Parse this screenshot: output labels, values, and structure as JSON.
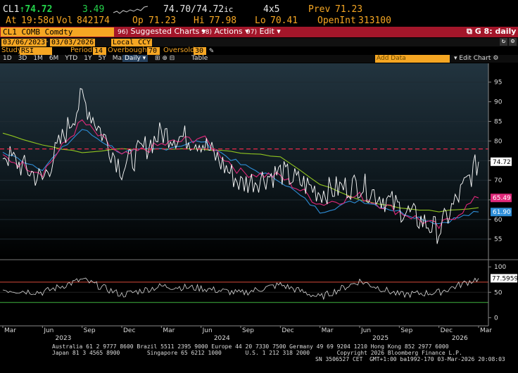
{
  "quote": {
    "ticker": "CL1",
    "arrow": "↑",
    "last": "74.72",
    "change": "3.49",
    "bid_ask": "74.70/74.72",
    "bid_ask_suffix": "ic",
    "size": "4x5",
    "prev_label": "Prev",
    "prev": "71.23",
    "at_label": "At",
    "time": "19:58d",
    "vol_label": "Vol",
    "vol": "842174",
    "op_label": "Op",
    "open": "71.23",
    "hi_label": "Hi",
    "high": "77.98",
    "lo_label": "Lo",
    "low": "70.41",
    "oi_label": "OpenInt",
    "open_interest": "313100"
  },
  "toolbar": {
    "security": "CL1 COMB Comdty",
    "suggested_charts": "Suggested Charts",
    "actions": "Actions",
    "edit": "Edit",
    "function": "G 8: daily"
  },
  "settings": {
    "start_date": "03/06/2023",
    "end_date": "03/03/2026",
    "currency": "Local CCY",
    "study_label": "Study",
    "study": "RSI",
    "period_label": "Period",
    "period": "14",
    "overbought_label": "Overbought",
    "overbought": "70",
    "oversold_label": "Oversold",
    "oversold": "30"
  },
  "tabs": [
    "1D",
    "3D",
    "1M",
    "6M",
    "YTD",
    "1Y",
    "5Y",
    "Max"
  ],
  "frequency": "Daily",
  "table_label": "Table",
  "add_data": "Add Data",
  "edit_chart": "Edit Chart",
  "colors": {
    "price": "#ffffff",
    "ma_short": "#e0287a",
    "ma_mid": "#2e8ed8",
    "ma_long": "#8fc31f",
    "resistance": "#e8284a",
    "rsi": "#d9d9d9"
  },
  "chart_data": [
    {
      "type": "line",
      "x": [
        "Mar 2023",
        "Jun 2023",
        "Sep 2023",
        "Dec 2023",
        "Mar 2024",
        "Jun 2024",
        "Sep 2024",
        "Dec 2024",
        "Mar 2025",
        "Jun 2025",
        "Sep 2025",
        "Dec 2025",
        "Mar 2026"
      ],
      "series": [
        {
          "values": [
            77,
            70,
            91,
            73,
            82,
            80,
            69,
            72,
            67,
            69,
            63,
            57,
            74.72
          ]
        },
        {
          "values": [
            76,
            72,
            85,
            76,
            79,
            81,
            72,
            71,
            64,
            66,
            62,
            58,
            65.49
          ]
        },
        {
          "values": [
            77,
            73,
            83,
            77,
            78,
            80,
            74,
            70,
            62,
            65,
            62,
            59,
            61.9
          ]
        },
        {
          "values": [
            82,
            79,
            77,
            78,
            78,
            78,
            77,
            76,
            69,
            65,
            63,
            62,
            63
          ]
        }
      ],
      "resistance": 77.98,
      "last_tags": [
        "74.72",
        "65.49",
        "61.90"
      ],
      "yticks": [
        55,
        60,
        65,
        70,
        75,
        80,
        85,
        90,
        95
      ],
      "ylim": [
        51,
        98
      ]
    },
    {
      "type": "line",
      "series": [
        {
          "values": [
            55,
            50,
            75,
            45,
            62,
            58,
            48,
            65,
            40,
            72,
            45,
            50,
            77.5959
          ]
        }
      ],
      "last_tag": "77.5959",
      "yticks": [
        0,
        50,
        100
      ],
      "ylim": [
        -5,
        110
      ],
      "overbought": 70,
      "oversold": 30
    }
  ],
  "x_ticks": [
    "Mar",
    "Jun",
    "Sep",
    "Dec",
    "Mar",
    "Jun",
    "Sep",
    "Dec",
    "Mar",
    "Jun",
    "Sep",
    "Dec",
    "Mar"
  ],
  "year_ticks": [
    "2023",
    "2024",
    "2025",
    "2026"
  ],
  "footer": {
    "line1": "Australia 61 2 9777 8600 Brazil 5511 2395 9000 Europe 44 20 7330 7500 Germany 49 69 9204 1210 Hong Kong 852 2977 6000",
    "line2": "Japan 81 3 4565 8900        Singapore 65 6212 1000       U.S. 1 212 318 2000        Copyright 2026 Bloomberg Finance L.P.",
    "line3": "SN 3506527 CET  GMT+1:00 ba1992-170 03-Mar-2026 20:08:03"
  }
}
